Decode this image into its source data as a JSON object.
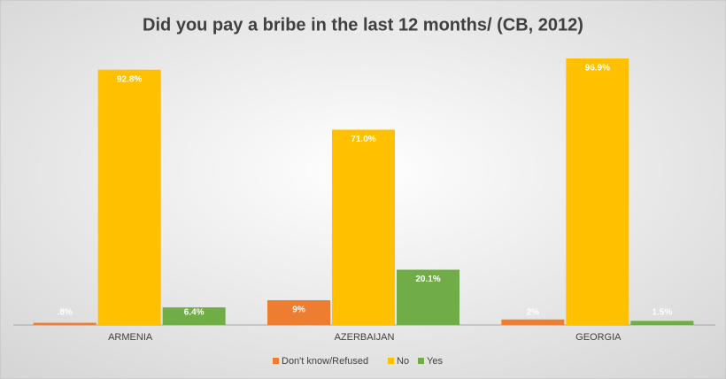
{
  "chart_data": {
    "type": "bar",
    "title": "Did you pay a bribe in the last 12 months/ (CB, 2012)",
    "categories": [
      "ARMENIA",
      "AZERBAIJAN",
      "GEORGIA"
    ],
    "series": [
      {
        "name": "Don't know/Refused",
        "color": "#ed7d31",
        "values": [
          0.8,
          9,
          2
        ],
        "value_labels": [
          ".8%",
          "9%",
          "2%"
        ]
      },
      {
        "name": "No",
        "color": "#ffc000",
        "values": [
          92.8,
          71.0,
          96.9
        ],
        "value_labels": [
          "92.8%",
          "71.0%",
          "96.9%"
        ]
      },
      {
        "name": "Yes",
        "color": "#70ad47",
        "values": [
          6.4,
          20.1,
          1.5
        ],
        "value_labels": [
          "6.4%",
          "20.1%",
          "1.5%"
        ]
      }
    ],
    "legend": "bottom"
  }
}
